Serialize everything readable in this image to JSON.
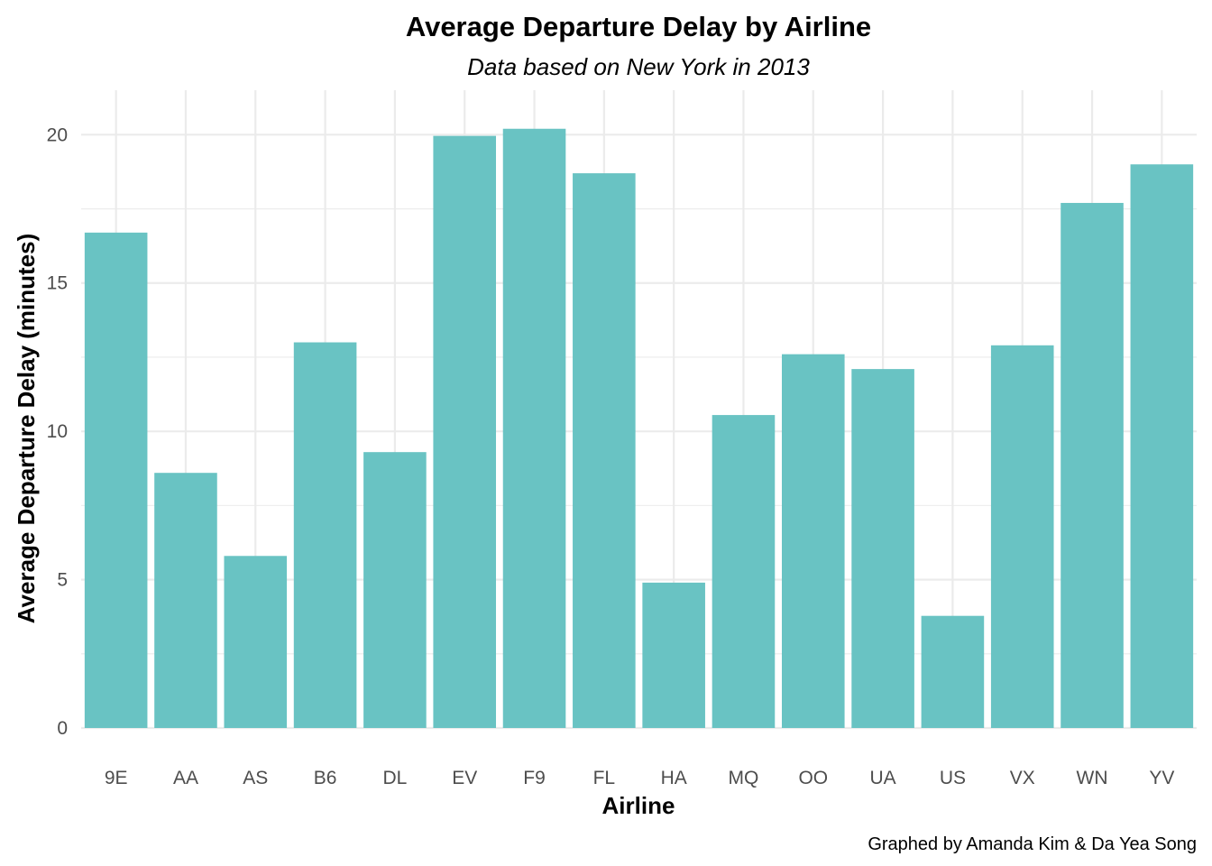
{
  "chart_data": {
    "type": "bar",
    "title": "Average Departure Delay by Airline",
    "subtitle": "Data based on New York in 2013",
    "xlabel": "Airline",
    "ylabel": "Average Departure Delay (minutes)",
    "caption": "Graphed by Amanda Kim & Da Yea Song",
    "categories": [
      "9E",
      "AA",
      "AS",
      "B6",
      "DL",
      "EV",
      "F9",
      "FL",
      "HA",
      "MQ",
      "OO",
      "UA",
      "US",
      "VX",
      "WN",
      "YV"
    ],
    "values": [
      16.7,
      8.6,
      5.8,
      13.0,
      9.3,
      19.96,
      20.2,
      18.7,
      4.9,
      10.55,
      12.6,
      12.1,
      3.78,
      12.9,
      17.7,
      19.0
    ],
    "ylim": [
      0,
      21.5
    ],
    "yticks": [
      0,
      5,
      10,
      15,
      20
    ],
    "grid": true,
    "legend": "none",
    "bar_color": "#69c3c3"
  }
}
